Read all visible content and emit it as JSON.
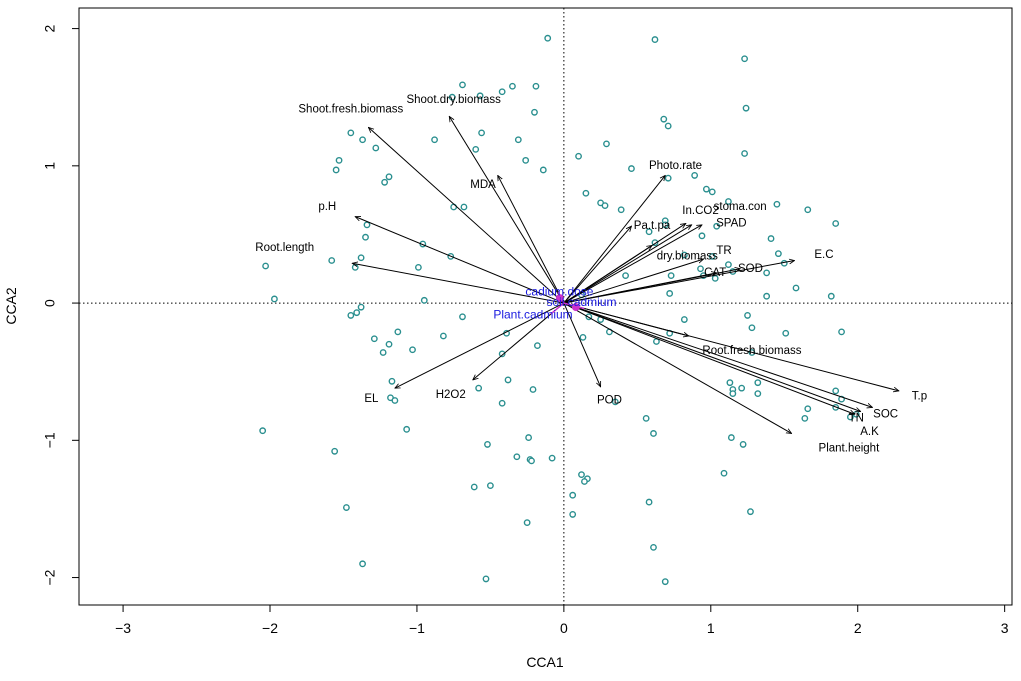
{
  "chart_data": {
    "type": "scatter",
    "title": "",
    "xlabel": "CCA1",
    "ylabel": "CCA2",
    "xlim": [
      -3.3,
      3.05
    ],
    "ylim": [
      -2.2,
      2.15
    ],
    "xticks": [
      -3,
      -2,
      -1,
      0,
      1,
      2,
      3
    ],
    "yticks": [
      -2,
      -1,
      0,
      1,
      2
    ],
    "x_tick_labels": [
      "−3",
      "−2",
      "−1",
      "0",
      "1",
      "2",
      "3"
    ],
    "y_tick_labels": [
      "−2",
      "−1",
      "0",
      "1",
      "2"
    ],
    "reference_lines": {
      "x": 0,
      "y": 0,
      "style": "dotted"
    },
    "colors": {
      "points": "#2a8f8f",
      "vectors": "#000000",
      "env_labels": "#1a1adf",
      "env_marker": "#cc33cc"
    },
    "points": [
      [
        -0.11,
        1.93
      ],
      [
        0.62,
        1.92
      ],
      [
        1.23,
        1.78
      ],
      [
        -0.69,
        1.59
      ],
      [
        -0.35,
        1.58
      ],
      [
        -0.19,
        1.58
      ],
      [
        -0.57,
        1.51
      ],
      [
        -0.76,
        1.5
      ],
      [
        -0.42,
        1.54
      ],
      [
        1.24,
        1.42
      ],
      [
        -0.2,
        1.39
      ],
      [
        -0.56,
        1.24
      ],
      [
        -0.88,
        1.19
      ],
      [
        -1.37,
        1.19
      ],
      [
        -1.28,
        1.13
      ],
      [
        0.68,
        1.34
      ],
      [
        0.71,
        1.29
      ],
      [
        -1.45,
        1.24
      ],
      [
        -0.31,
        1.19
      ],
      [
        0.29,
        1.16
      ],
      [
        -0.6,
        1.12
      ],
      [
        -0.26,
        1.04
      ],
      [
        0.1,
        1.07
      ],
      [
        1.23,
        1.09
      ],
      [
        -1.53,
        1.04
      ],
      [
        -0.14,
        0.97
      ],
      [
        -1.55,
        0.97
      ],
      [
        -1.19,
        0.92
      ],
      [
        -1.22,
        0.88
      ],
      [
        0.46,
        0.98
      ],
      [
        0.71,
        0.91
      ],
      [
        0.89,
        0.93
      ],
      [
        0.97,
        0.83
      ],
      [
        1.01,
        0.81
      ],
      [
        0.15,
        0.8
      ],
      [
        0.25,
        0.73
      ],
      [
        0.28,
        0.71
      ],
      [
        0.39,
        0.68
      ],
      [
        1.45,
        0.72
      ],
      [
        1.66,
        0.68
      ],
      [
        1.12,
        0.74
      ],
      [
        0.69,
        0.6
      ],
      [
        0.69,
        0.57
      ],
      [
        0.58,
        0.52
      ],
      [
        0.94,
        0.49
      ],
      [
        1.04,
        0.56
      ],
      [
        1.41,
        0.47
      ],
      [
        1.85,
        0.58
      ],
      [
        -0.75,
        0.7
      ],
      [
        -0.68,
        0.7
      ],
      [
        -1.34,
        0.57
      ],
      [
        -0.96,
        0.43
      ],
      [
        -1.35,
        0.48
      ],
      [
        -0.77,
        0.34
      ],
      [
        0.62,
        0.44
      ],
      [
        1.46,
        0.36
      ],
      [
        1.01,
        0.34
      ],
      [
        0.82,
        0.35
      ],
      [
        1.12,
        0.28
      ],
      [
        0.93,
        0.25
      ],
      [
        0.42,
        0.2
      ],
      [
        1.03,
        0.18
      ],
      [
        0.73,
        0.2
      ],
      [
        1.15,
        0.23
      ],
      [
        0.95,
        0.2
      ],
      [
        1.38,
        0.22
      ],
      [
        1.5,
        0.29
      ],
      [
        -1.38,
        0.33
      ],
      [
        -1.42,
        0.26
      ],
      [
        -1.58,
        0.31
      ],
      [
        -2.03,
        0.27
      ],
      [
        -1.97,
        0.03
      ],
      [
        -0.99,
        0.26
      ],
      [
        1.58,
        0.11
      ],
      [
        1.82,
        0.05
      ],
      [
        1.38,
        0.05
      ],
      [
        0.72,
        0.07
      ],
      [
        0.12,
        0.06
      ],
      [
        -0.95,
        0.02
      ],
      [
        -1.38,
        -0.03
      ],
      [
        -1.41,
        -0.07
      ],
      [
        -1.45,
        -0.09
      ],
      [
        -0.69,
        -0.1
      ],
      [
        0.17,
        -0.1
      ],
      [
        0.25,
        -0.12
      ],
      [
        0.31,
        -0.21
      ],
      [
        0.82,
        -0.12
      ],
      [
        1.25,
        -0.09
      ],
      [
        1.28,
        -0.18
      ],
      [
        0.72,
        -0.22
      ],
      [
        1.89,
        -0.21
      ],
      [
        1.51,
        -0.22
      ],
      [
        -1.13,
        -0.21
      ],
      [
        -1.29,
        -0.26
      ],
      [
        -0.82,
        -0.24
      ],
      [
        -1.19,
        -0.3
      ],
      [
        -0.39,
        -0.22
      ],
      [
        -0.18,
        -0.31
      ],
      [
        -1.03,
        -0.34
      ],
      [
        -1.23,
        -0.36
      ],
      [
        -0.42,
        -0.37
      ],
      [
        0.13,
        -0.25
      ],
      [
        1.28,
        -0.36
      ],
      [
        0.63,
        -0.28
      ],
      [
        -1.17,
        -0.57
      ],
      [
        -1.18,
        -0.69
      ],
      [
        -1.15,
        -0.71
      ],
      [
        -0.58,
        -0.62
      ],
      [
        -0.38,
        -0.56
      ],
      [
        -0.21,
        -0.63
      ],
      [
        1.13,
        -0.58
      ],
      [
        1.21,
        -0.62
      ],
      [
        1.32,
        -0.58
      ],
      [
        1.85,
        -0.64
      ],
      [
        -0.42,
        -0.73
      ],
      [
        0.35,
        -0.72
      ],
      [
        1.15,
        -0.63
      ],
      [
        1.15,
        -0.66
      ],
      [
        1.32,
        -0.66
      ],
      [
        1.89,
        -0.7
      ],
      [
        1.66,
        -0.77
      ],
      [
        1.64,
        -0.84
      ],
      [
        1.99,
        -0.81
      ],
      [
        1.85,
        -0.76
      ],
      [
        1.95,
        -0.83
      ],
      [
        0.56,
        -0.84
      ],
      [
        -1.07,
        -0.92
      ],
      [
        -2.05,
        -0.93
      ],
      [
        1.14,
        -0.98
      ],
      [
        1.22,
        -1.03
      ],
      [
        0.61,
        -0.95
      ],
      [
        -0.24,
        -0.98
      ],
      [
        -0.52,
        -1.03
      ],
      [
        -0.23,
        -1.14
      ],
      [
        -0.32,
        -1.12
      ],
      [
        -0.22,
        -1.15
      ],
      [
        -0.08,
        -1.13
      ],
      [
        -1.56,
        -1.08
      ],
      [
        1.09,
        -1.24
      ],
      [
        0.12,
        -1.25
      ],
      [
        0.16,
        -1.28
      ],
      [
        0.14,
        -1.3
      ],
      [
        -0.61,
        -1.34
      ],
      [
        -0.5,
        -1.33
      ],
      [
        0.06,
        -1.4
      ],
      [
        0.58,
        -1.45
      ],
      [
        -1.48,
        -1.49
      ],
      [
        1.27,
        -1.52
      ],
      [
        0.06,
        -1.54
      ],
      [
        -0.25,
        -1.6
      ],
      [
        0.61,
        -1.78
      ],
      [
        -1.37,
        -1.9
      ],
      [
        -0.53,
        -2.01
      ],
      [
        0.69,
        -2.03
      ]
    ],
    "vectors": [
      {
        "name": "Shoot.dry.biomass",
        "x": -0.78,
        "y": 1.36
      },
      {
        "name": "Shoot.fresh.biomass",
        "x": -1.33,
        "y": 1.28
      },
      {
        "name": "MDA",
        "x": -0.45,
        "y": 0.93
      },
      {
        "name": "p.H",
        "x": -1.42,
        "y": 0.63
      },
      {
        "name": "Root.length",
        "x": -1.44,
        "y": 0.29
      },
      {
        "name": "EL",
        "x": -1.15,
        "y": -0.62
      },
      {
        "name": "H2O2",
        "x": -0.62,
        "y": -0.56
      },
      {
        "name": "POD",
        "x": 0.25,
        "y": -0.61
      },
      {
        "name": "Photo.rate",
        "x": 0.69,
        "y": 0.93
      },
      {
        "name": "Pa.t.pa",
        "x": 0.46,
        "y": 0.56
      },
      {
        "name": "In.CO2",
        "x": 0.83,
        "y": 0.58
      },
      {
        "name": "stoma.con",
        "x": 0.87,
        "y": 0.57
      },
      {
        "name": "SPAD",
        "x": 0.94,
        "y": 0.57
      },
      {
        "name": "TR",
        "x": 0.95,
        "y": 0.32
      },
      {
        "name": "dry.biomass",
        "x": 0.6,
        "y": 0.42
      },
      {
        "name": "CAT",
        "x": 1.04,
        "y": 0.22
      },
      {
        "name": "SOD",
        "x": 1.2,
        "y": 0.25
      },
      {
        "name": "E.C",
        "x": 1.57,
        "y": 0.31
      },
      {
        "name": "Root.fresh.biomass",
        "x": 0.85,
        "y": -0.24
      },
      {
        "name": "T.p",
        "x": 2.28,
        "y": -0.64
      },
      {
        "name": "SOC",
        "x": 2.1,
        "y": -0.76
      },
      {
        "name": "TN",
        "x": 1.98,
        "y": -0.81
      },
      {
        "name": "A.K",
        "x": 2.02,
        "y": -0.79
      },
      {
        "name": "Plant.height",
        "x": 1.55,
        "y": -0.95
      }
    ],
    "vector_label_pos": [
      {
        "name": "Shoot.dry.biomass",
        "x": -0.75,
        "y": 1.48
      },
      {
        "name": "Shoot.fresh.biomass",
        "x": -1.45,
        "y": 1.41
      },
      {
        "name": "MDA",
        "x": -0.55,
        "y": 0.86
      },
      {
        "name": "p.H",
        "x": -1.61,
        "y": 0.7
      },
      {
        "name": "Root.length",
        "x": -1.9,
        "y": 0.4
      },
      {
        "name": "EL",
        "x": -1.31,
        "y": -0.7
      },
      {
        "name": "H2O2",
        "x": -0.77,
        "y": -0.67
      },
      {
        "name": "POD",
        "x": 0.31,
        "y": -0.71
      },
      {
        "name": "Photo.rate",
        "x": 0.76,
        "y": 1.0
      },
      {
        "name": "Pa.t.pa",
        "x": 0.6,
        "y": 0.56
      },
      {
        "name": "In.CO2",
        "x": 0.93,
        "y": 0.67
      },
      {
        "name": "stoma.con",
        "x": 1.2,
        "y": 0.7
      },
      {
        "name": "SPAD",
        "x": 1.14,
        "y": 0.58
      },
      {
        "name": "TR",
        "x": 1.09,
        "y": 0.38
      },
      {
        "name": "dry.biomass",
        "x": 0.84,
        "y": 0.34
      },
      {
        "name": "CAT",
        "x": 1.03,
        "y": 0.22
      },
      {
        "name": "SOD",
        "x": 1.27,
        "y": 0.25
      },
      {
        "name": "E.C",
        "x": 1.77,
        "y": 0.35
      },
      {
        "name": "Root.fresh.biomass",
        "x": 1.28,
        "y": -0.35
      },
      {
        "name": "T.p",
        "x": 2.42,
        "y": -0.68
      },
      {
        "name": "SOC",
        "x": 2.19,
        "y": -0.81
      },
      {
        "name": "TN",
        "x": 1.99,
        "y": -0.84
      },
      {
        "name": "A.K",
        "x": 2.08,
        "y": -0.94
      },
      {
        "name": "Plant.height",
        "x": 1.94,
        "y": -1.06
      }
    ],
    "env_vectors": [
      {
        "name": "cadium.dose",
        "x": -0.04,
        "y": 0.08
      },
      {
        "name": "soil.cadmium",
        "x": 0.14,
        "y": -0.04
      },
      {
        "name": "Plant.cadmium",
        "x": -0.09,
        "y": -0.08
      }
    ],
    "env_label_pos": [
      {
        "name": "cadium.dose",
        "x": -0.03,
        "y": 0.08
      },
      {
        "name": "soil.cadmium",
        "x": 0.12,
        "y": 0.0
      },
      {
        "name": "Plant.cadmium",
        "x": -0.21,
        "y": -0.09
      }
    ]
  }
}
